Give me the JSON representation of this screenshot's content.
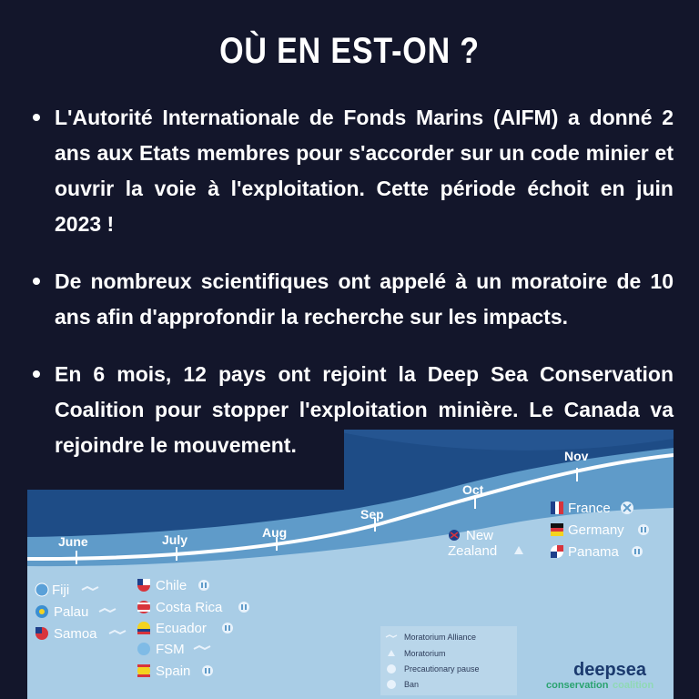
{
  "title": "OÙ EN EST-ON ?",
  "bullets": [
    "L'Autorité Internationale de Fonds Marins (AIFM) a donné 2 ans aux Etats membres pour s'accorder sur un code minier et ouvrir la voie à l'exploitation. Cette période échoit en juin 2023 !",
    "De nombreux scientifiques ont appelé à un moratoire de 10 ans afin d'approfondir la recherche sur les impacts.",
    "En 6 mois, 12 pays ont rejoint la Deep Sea Conservation Coalition pour stopper l'exploitation minière. Le Canada va rejoindre le mouvement."
  ],
  "timeline": {
    "months": [
      "June",
      "July",
      "Aug",
      "Sep",
      "Oct",
      "Nov"
    ],
    "june_countries": [
      "Fiji",
      "Palau",
      "Samoa"
    ],
    "july_countries": [
      "Chile",
      "Costa Rica",
      "Ecuador",
      "FSM",
      "Spain"
    ],
    "oct_countries": [
      "New Zealand"
    ],
    "oct_country_line1": "New",
    "oct_country_line2": "Zealand",
    "nov_countries": [
      "France",
      "Germany",
      "Panama"
    ]
  },
  "legend": {
    "alliance": "Moratorium Alliance",
    "moratorium": "Moratorium",
    "pause": "Precautionary pause",
    "ban": "Ban"
  },
  "logo": {
    "line1": "deepsea",
    "line2_a": "conservation",
    "line2_b": "coalition"
  },
  "colors": {
    "background": "#13162b",
    "sea_light": "#a9cde6",
    "sea_mid": "#5f9bc9",
    "sea_dark": "#1e4c86"
  }
}
